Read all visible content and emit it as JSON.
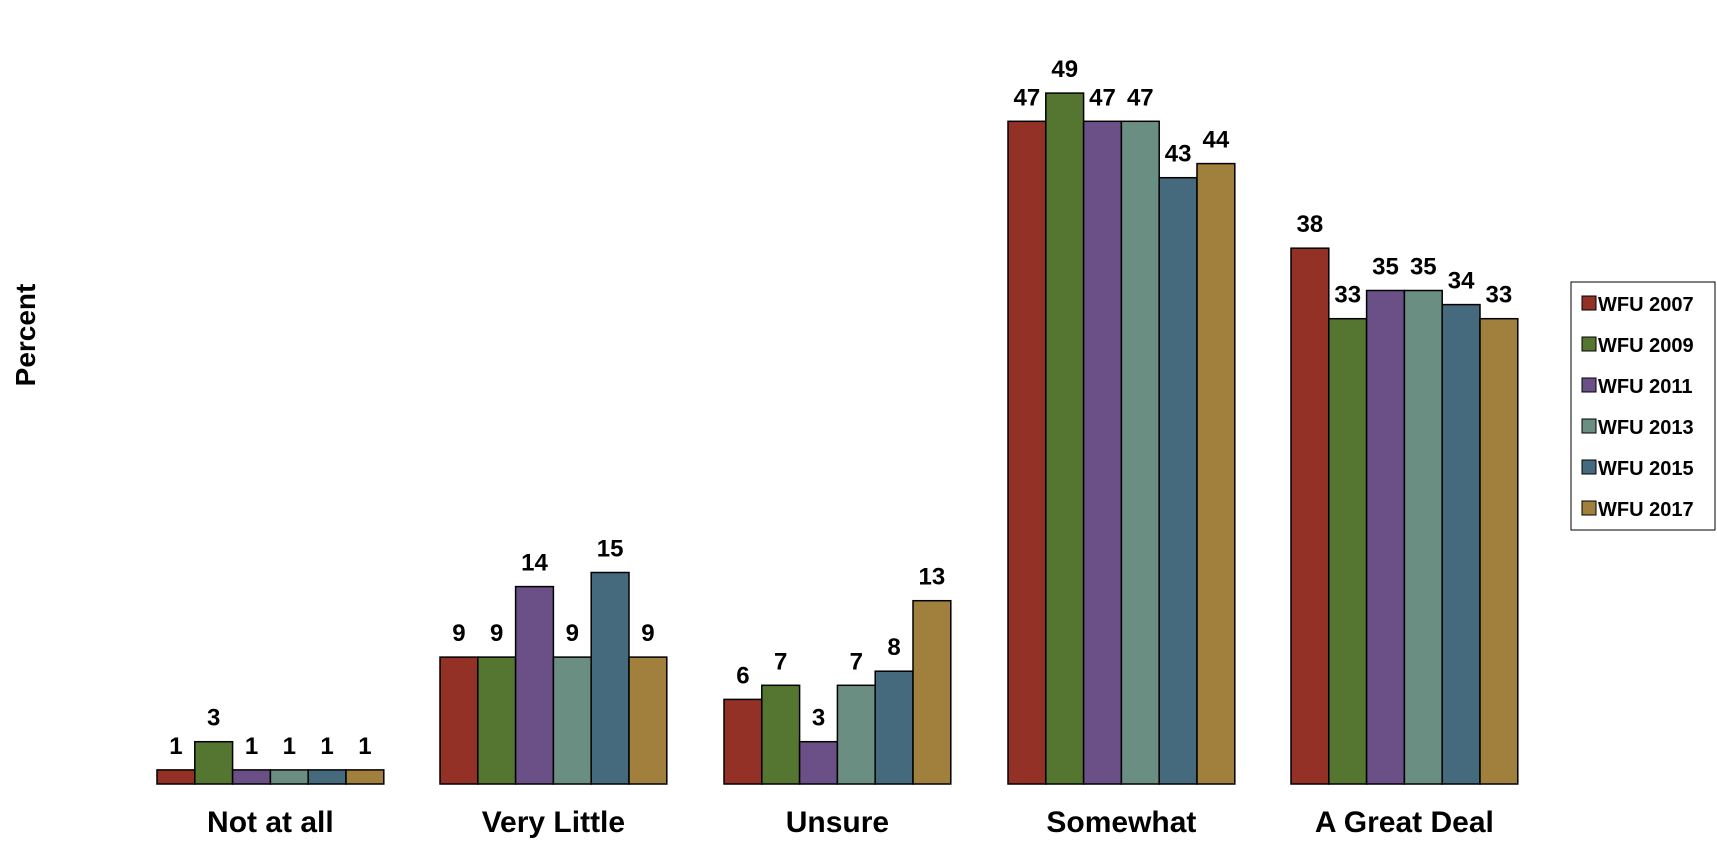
{
  "chart_data": {
    "type": "bar",
    "ylabel": "Percent",
    "categories": [
      "Not at all",
      "Very Little",
      "Unsure",
      "Somewhat",
      "A Great Deal"
    ],
    "series": [
      {
        "name": "WFU 2007",
        "color": "#943126",
        "values": [
          1,
          9,
          6,
          47,
          38
        ]
      },
      {
        "name": "WFU 2009",
        "color": "#557630",
        "values": [
          3,
          9,
          7,
          49,
          33
        ]
      },
      {
        "name": "WFU 2011",
        "color": "#6A5087",
        "values": [
          1,
          14,
          3,
          47,
          35
        ]
      },
      {
        "name": "WFU 2013",
        "color": "#6B8E82",
        "values": [
          1,
          9,
          7,
          47,
          35
        ]
      },
      {
        "name": "WFU 2015",
        "color": "#456A7D",
        "values": [
          1,
          15,
          8,
          43,
          34
        ]
      },
      {
        "name": "WFU 2017",
        "color": "#A0803C",
        "values": [
          1,
          9,
          13,
          44,
          33
        ]
      }
    ],
    "ylim": [
      0,
      50
    ],
    "grid": false,
    "legend": "right"
  }
}
